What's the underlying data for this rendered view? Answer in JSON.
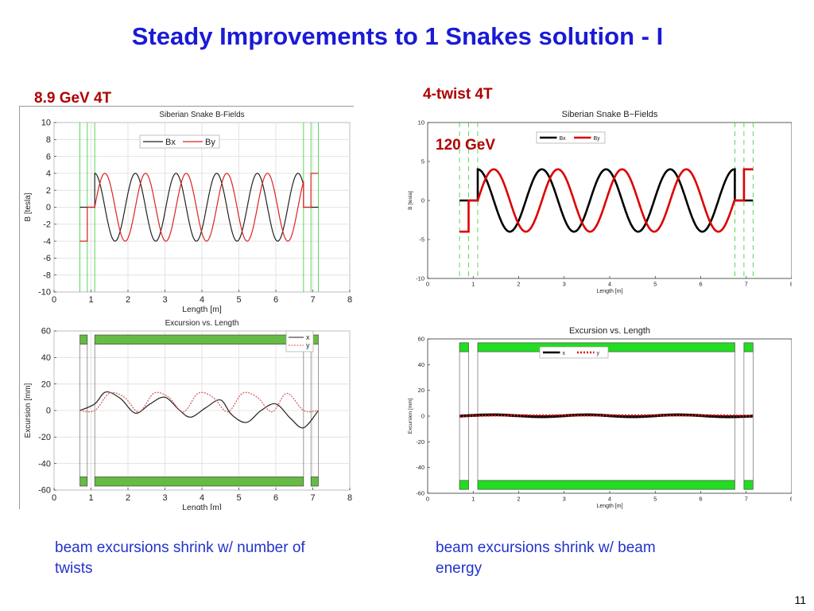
{
  "title": "Steady Improvements to 1 Snakes solution - I",
  "left_caption": "8.9 GeV  4T",
  "right_caption": "4-twist  4T",
  "right_energy": "120 GeV",
  "bullet_left": "beam excursions shrink w/ number of twists",
  "bullet_right": "beam excursions shrink w/ beam energy",
  "page_number": "11",
  "colors": {
    "title": "#1a1ad6",
    "caption": "#b00000",
    "magnet_left": "#66bb44",
    "magnet_right": "#22dd22",
    "bx": "#000000",
    "by": "#dd0000",
    "snake_lines": "#33cc33"
  },
  "chart_data": [
    {
      "id": "left-b",
      "type": "line",
      "title": "Siberian Snake B-Fields",
      "xlabel": "Length [m]",
      "ylabel": "B [tesla]",
      "xlim": [
        0,
        8
      ],
      "ylim": [
        -10,
        10
      ],
      "xticks": [
        0,
        1,
        2,
        3,
        4,
        5,
        6,
        7,
        8
      ],
      "yticks": [
        -10,
        -8,
        -6,
        -4,
        -2,
        0,
        2,
        4,
        6,
        8,
        10
      ],
      "grid": true,
      "legend_position": "top-center",
      "vlines": [
        0.7,
        0.9,
        1.1,
        6.75,
        6.95,
        7.15
      ],
      "series": [
        {
          "name": "Bx",
          "color": "#222222",
          "x": [
            0.7,
            1.1,
            1.1,
            6.75,
            6.75,
            7.15
          ],
          "y": [
            0,
            0,
            "osc",
            "osc",
            0,
            0
          ],
          "osc": {
            "amp": 4,
            "start": 1.1,
            "end": 6.75,
            "period": 1.1,
            "phase": 0.25
          }
        },
        {
          "name": "By",
          "color": "#dd2222",
          "x": [
            0.7,
            0.9,
            0.9,
            1.1,
            6.95,
            7.15
          ],
          "y": [
            -4,
            -4,
            0,
            0,
            4,
            4
          ],
          "osc": {
            "amp": 4,
            "start": 1.1,
            "end": 6.75,
            "period": 1.1,
            "phase": 0.0
          }
        }
      ]
    },
    {
      "id": "left-ex",
      "type": "line",
      "title": "Excursion vs. Length",
      "xlabel": "Length [m]",
      "ylabel": "Excursion [mm]",
      "xlim": [
        0,
        8
      ],
      "ylim": [
        -60,
        60
      ],
      "xticks": [
        0,
        1,
        2,
        3,
        4,
        5,
        6,
        7,
        8
      ],
      "yticks": [
        -60,
        -40,
        -20,
        0,
        20,
        40,
        60
      ],
      "grid": true,
      "legend_position": "top-right",
      "series": [
        {
          "name": "x",
          "color": "#222222",
          "x": [
            0.7,
            1.1,
            1.4,
            1.8,
            2.2,
            2.6,
            3.0,
            3.4,
            3.7,
            4.1,
            4.5,
            4.8,
            5.2,
            5.6,
            6.0,
            6.4,
            6.75,
            7.15
          ],
          "y": [
            0,
            5,
            14,
            9,
            -2,
            5,
            10,
            0,
            -5,
            2,
            8,
            -3,
            -9,
            0,
            5,
            -6,
            -13,
            0
          ]
        },
        {
          "name": "y",
          "color": "#dd5555",
          "x": [
            0.7,
            1.1,
            1.5,
            1.9,
            2.3,
            2.7,
            3.1,
            3.5,
            3.9,
            4.3,
            4.7,
            5.1,
            5.5,
            5.9,
            6.3,
            6.75,
            7.15
          ],
          "y": [
            0,
            0,
            13,
            10,
            -1,
            13,
            10,
            -1,
            13,
            10,
            -1,
            13,
            10,
            -1,
            13,
            0,
            0
          ]
        }
      ]
    },
    {
      "id": "right-b",
      "type": "line",
      "title": "Siberian Snake B−Fields",
      "xlabel": "Length [m]",
      "ylabel": "B [tesla]",
      "xlim": [
        0,
        8
      ],
      "ylim": [
        -10,
        10
      ],
      "xticks": [
        0,
        1,
        2,
        3,
        4,
        5,
        6,
        7,
        8
      ],
      "yticks": [
        -10,
        -5,
        0,
        5,
        10
      ],
      "grid": false,
      "legend_position": "top-center",
      "vlines": [
        0.7,
        0.9,
        1.1,
        6.75,
        6.95,
        7.15
      ],
      "series": [
        {
          "name": "Bx",
          "color": "#000000",
          "x": [
            0.7,
            1.1,
            1.1,
            6.75,
            6.75,
            7.15
          ],
          "y": [
            0,
            0,
            "osc",
            "osc",
            0,
            0
          ],
          "osc": {
            "amp": 4,
            "start": 1.1,
            "end": 6.75,
            "period": 1.41,
            "phase": 0.25
          }
        },
        {
          "name": "By",
          "color": "#dd0000",
          "x": [
            0.7,
            0.9,
            0.9,
            1.1,
            6.95,
            7.15
          ],
          "y": [
            -4,
            -4,
            0,
            0,
            4,
            4
          ],
          "osc": {
            "amp": 4,
            "start": 1.1,
            "end": 6.75,
            "period": 1.41,
            "phase": 0.0
          }
        }
      ]
    },
    {
      "id": "right-ex",
      "type": "line",
      "title": "Excursion vs. Length",
      "xlabel": "Length [m]",
      "ylabel": "Excursion [mm]",
      "xlim": [
        0,
        8
      ],
      "ylim": [
        -60,
        60
      ],
      "xticks": [
        0,
        1,
        2,
        3,
        4,
        5,
        6,
        7,
        8
      ],
      "yticks": [
        -60,
        -40,
        -20,
        0,
        20,
        40,
        60
      ],
      "grid": false,
      "legend_position": "top-center",
      "series": [
        {
          "name": "x",
          "color": "#000000",
          "x": [
            0.7,
            1.5,
            2.5,
            3.5,
            4.5,
            5.5,
            6.5,
            7.15
          ],
          "y": [
            0,
            1,
            -0.5,
            1,
            -0.5,
            1,
            -0.5,
            0
          ]
        },
        {
          "name": "y",
          "color": "#dd0000",
          "x": [
            0.7,
            1.5,
            2.5,
            3.5,
            4.5,
            5.5,
            6.5,
            7.15
          ],
          "y": [
            0,
            0.5,
            0.5,
            0.5,
            0.5,
            0.5,
            0.5,
            0
          ]
        }
      ]
    }
  ],
  "magnets_left": [
    {
      "x0": 0.7,
      "x1": 0.9
    },
    {
      "x0": 1.1,
      "x1": 6.75
    },
    {
      "x0": 6.95,
      "x1": 7.15
    }
  ],
  "magnets_right": [
    {
      "x0": 0.7,
      "x1": 0.9
    },
    {
      "x0": 1.1,
      "x1": 6.75
    },
    {
      "x0": 6.95,
      "x1": 7.15
    }
  ]
}
